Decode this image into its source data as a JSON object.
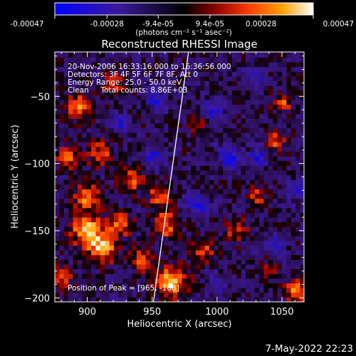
{
  "colorbar": {
    "ticks": [
      "-0.00047",
      "-0.00028",
      "-9.4e-05",
      "9.4e-05",
      "0.00028",
      "0.00047"
    ],
    "tick_values": [
      -0.00047,
      -0.00028,
      -9.4e-05,
      9.4e-05,
      0.00028,
      0.00047
    ],
    "range": [
      -0.00047,
      0.00047
    ],
    "units": "(photons cm⁻² s⁻¹ asec⁻²)",
    "colors": [
      "#0000ff",
      "#3b1a9a",
      "#000000",
      "#8b0000",
      "#ff3c00",
      "#ffa000",
      "#ffffff"
    ]
  },
  "chart_data": {
    "type": "heatmap",
    "title": "Reconstructed RHESSI Image",
    "xlabel": "Heliocentric X (arcsec)",
    "ylabel": "Heliocentric Y (arcsec)",
    "xlim": [
      875,
      1067
    ],
    "ylim": [
      -203,
      -17
    ],
    "xticks": [
      900,
      950,
      1000,
      1050
    ],
    "xtick_labels": [
      "900",
      "950",
      "1000",
      "1050"
    ],
    "yticks": [
      -50,
      -100,
      -150,
      -200
    ],
    "ytick_labels": [
      "−50",
      "−100",
      "−150",
      "−200"
    ],
    "limb_line": [
      [
        951,
        -203
      ],
      [
        978,
        -17
      ]
    ],
    "sources": [
      {
        "x": 900,
        "y": -150,
        "s": 8,
        "v": 1.0
      },
      {
        "x": 912,
        "y": -163,
        "s": 7,
        "v": 0.95
      },
      {
        "x": 925,
        "y": -145,
        "s": 6,
        "v": 0.75
      },
      {
        "x": 900,
        "y": -125,
        "s": 7,
        "v": 0.7
      },
      {
        "x": 885,
        "y": -95,
        "s": 6,
        "v": 0.6
      },
      {
        "x": 893,
        "y": -58,
        "s": 7,
        "v": 0.7
      },
      {
        "x": 910,
        "y": -92,
        "s": 7,
        "v": 0.55
      },
      {
        "x": 935,
        "y": -112,
        "s": 7,
        "v": 0.55
      },
      {
        "x": 955,
        "y": -123,
        "s": 6,
        "v": 0.6
      },
      {
        "x": 960,
        "y": -145,
        "s": 7,
        "v": 0.75
      },
      {
        "x": 965,
        "y": -188,
        "s": 8,
        "v": 1.0
      },
      {
        "x": 942,
        "y": -172,
        "s": 6,
        "v": 0.55
      },
      {
        "x": 990,
        "y": -165,
        "s": 6,
        "v": 0.55
      },
      {
        "x": 1015,
        "y": -150,
        "s": 6,
        "v": 0.5
      },
      {
        "x": 1030,
        "y": -125,
        "s": 5,
        "v": 0.55
      },
      {
        "x": 1045,
        "y": -82,
        "s": 5,
        "v": 0.65
      },
      {
        "x": 1050,
        "y": -55,
        "s": 5,
        "v": 0.6
      },
      {
        "x": 1062,
        "y": -195,
        "s": 6,
        "v": 0.8
      },
      {
        "x": 1040,
        "y": -180,
        "s": 5,
        "v": 0.5
      },
      {
        "x": 920,
        "y": -40,
        "s": 6,
        "v": 0.5
      },
      {
        "x": 985,
        "y": -70,
        "s": 5,
        "v": 0.45
      },
      {
        "x": 880,
        "y": -185,
        "s": 6,
        "v": 0.55
      },
      {
        "x": 948,
        "y": -60,
        "s": 5,
        "v": 0.4
      }
    ],
    "sinks": [
      {
        "x": 952,
        "y": -55,
        "s": 6,
        "v": -0.7
      },
      {
        "x": 1010,
        "y": -95,
        "s": 6,
        "v": -0.7
      },
      {
        "x": 1032,
        "y": -95,
        "s": 5,
        "v": -0.65
      },
      {
        "x": 997,
        "y": -60,
        "s": 6,
        "v": -0.55
      },
      {
        "x": 1030,
        "y": -35,
        "s": 5,
        "v": -0.5
      },
      {
        "x": 950,
        "y": -95,
        "s": 6,
        "v": -0.55
      },
      {
        "x": 985,
        "y": -130,
        "s": 6,
        "v": -0.6
      },
      {
        "x": 1045,
        "y": -160,
        "s": 5,
        "v": -0.6
      },
      {
        "x": 1062,
        "y": -120,
        "s": 5,
        "v": -0.5
      },
      {
        "x": 925,
        "y": -70,
        "s": 5,
        "v": -0.45
      },
      {
        "x": 1000,
        "y": -190,
        "s": 5,
        "v": -0.45
      }
    ]
  },
  "overlay": {
    "line1": "20-Nov-2006 16:33:16.000 to 16:36:56.000",
    "line2": "Detectors: 3F 4F 5F 6F 7F 8F, Att 0",
    "line3": "Energy Range: 25.0 - 50.0 keV",
    "line4": "Clean     Total counts: 8.86E+03",
    "peak": "Position of Peak = [965, -188]"
  },
  "timestamp": "7-May-2022 22:23"
}
